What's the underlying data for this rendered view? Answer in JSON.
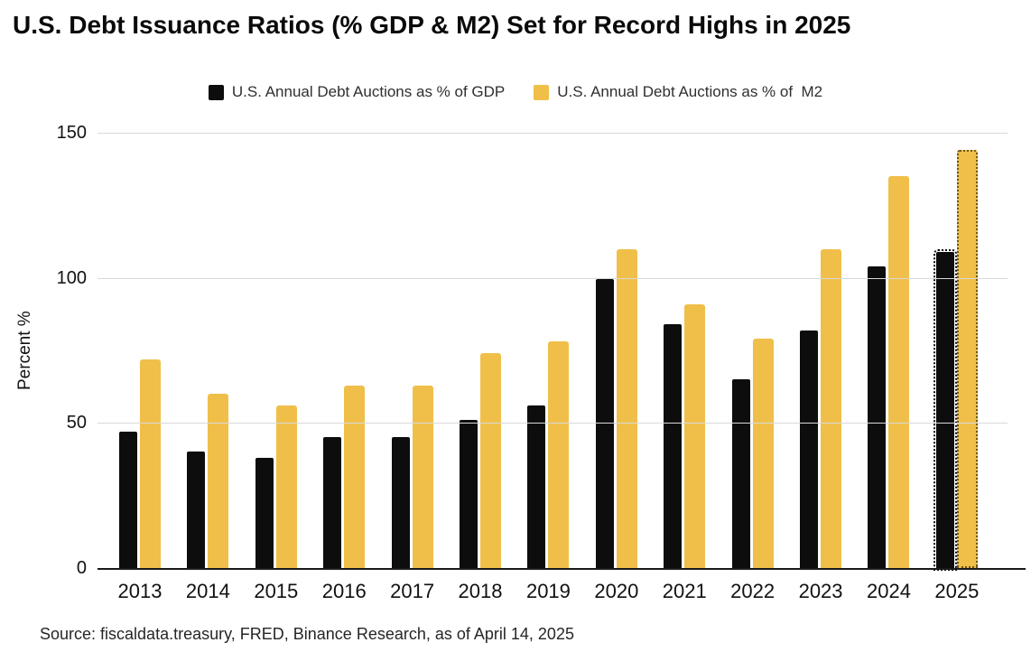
{
  "title": "U.S. Debt Issuance Ratios (% GDP & M2) Set for Record Highs in 2025",
  "source_note": "Source: fiscaldata.treasury, FRED, Binance Research, as of April 14, 2025",
  "colors": {
    "gdp_bar": "#0d0d0d",
    "m2_bar": "#f0bf4a",
    "gridline": "#d9d9d9",
    "axis_line": "#1a1a1a"
  },
  "chart_data": {
    "type": "bar",
    "title": "U.S. Debt Issuance Ratios (% GDP & M2) Set for Record Highs in 2025",
    "xlabel": "",
    "ylabel": "Percent %",
    "ylim": [
      0,
      150
    ],
    "yticks": [
      0,
      50,
      100,
      150
    ],
    "grid": "horizontal",
    "legend_position": "top",
    "categories": [
      "2013",
      "2014",
      "2015",
      "2016",
      "2017",
      "2018",
      "2019",
      "2020",
      "2021",
      "2022",
      "2023",
      "2024",
      "2025"
    ],
    "series": [
      {
        "name": "U.S. Annual Debt Auctions as % of GDP",
        "key": "gdp",
        "color": "#0d0d0d",
        "values": [
          47,
          40,
          38,
          45,
          45,
          51,
          56,
          99.5,
          84,
          65,
          82,
          104,
          109
        ]
      },
      {
        "name": "U.S. Annual Debt Auctions as % of  M2",
        "key": "m2",
        "color": "#f0bf4a",
        "values": [
          72,
          60,
          56,
          63,
          63,
          74,
          78,
          110,
          91,
          79,
          110,
          135,
          144
        ]
      }
    ],
    "forecast_category": "2025"
  }
}
